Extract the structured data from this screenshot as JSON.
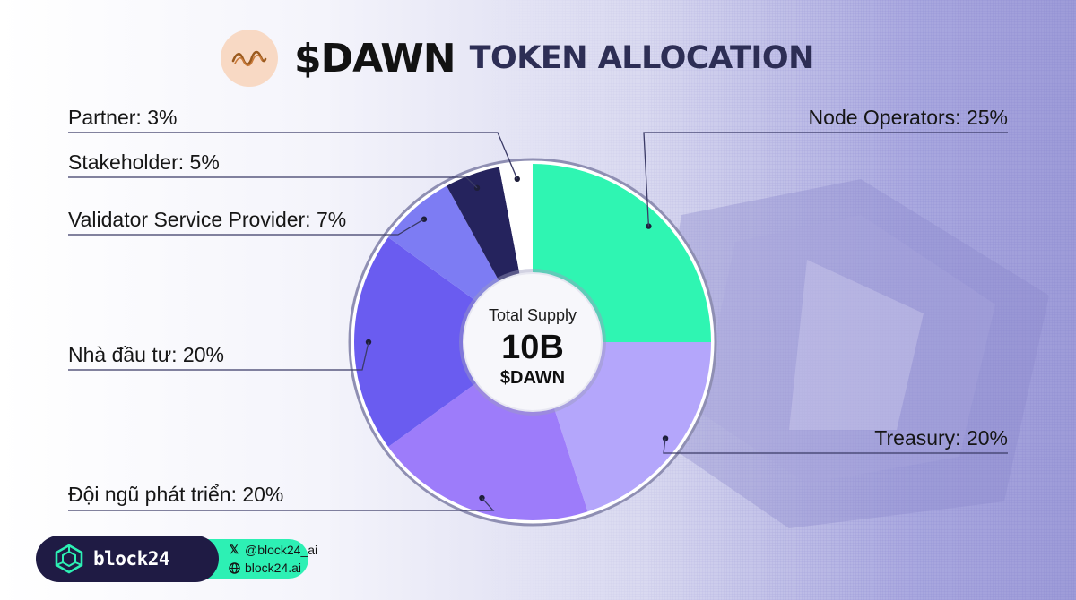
{
  "header": {
    "title": "$DAWN",
    "subtitle": "TOKEN ALLOCATION",
    "logo_icon": "wave-logo-icon"
  },
  "chart_data": {
    "type": "pie",
    "title": "$DAWN TOKEN ALLOCATION",
    "center_label": {
      "line1": "Total Supply",
      "line2": "10B",
      "line3": "$DAWN"
    },
    "slices": [
      {
        "label": "Node Operators: 25%",
        "name": "Node Operators",
        "value": 25,
        "color": "#2ff5b2"
      },
      {
        "label": "Treasury: 20%",
        "name": "Treasury",
        "value": 20,
        "color": "#b4a6fb"
      },
      {
        "label": "Đội ngũ phát triển: 20%",
        "name": "Đội ngũ phát triển",
        "value": 20,
        "color": "#9d7cfa"
      },
      {
        "label": "Nhà đầu tư: 20%",
        "name": "Nhà đầu tư",
        "value": 20,
        "color": "#6a5cf0"
      },
      {
        "label": "Validator Service Provider: 7%",
        "name": "Validator Service Provider",
        "value": 7,
        "color": "#7d7cf3"
      },
      {
        "label": "Stakeholder: 5%",
        "name": "Stakeholder",
        "value": 5,
        "color": "#25235d"
      },
      {
        "label": "Partner: 3%",
        "name": "Partner",
        "value": 3,
        "color": "#ffffff"
      }
    ],
    "legend": "none"
  },
  "footer": {
    "brand": "block24",
    "brand_icon": "cube-logo-icon",
    "social_handle": "@block24_ai",
    "social_handle_icon": "x-icon",
    "website": "block24.ai",
    "website_icon": "globe-icon",
    "brand_color": "#1f1b44",
    "accent_color": "#2df0b4"
  }
}
